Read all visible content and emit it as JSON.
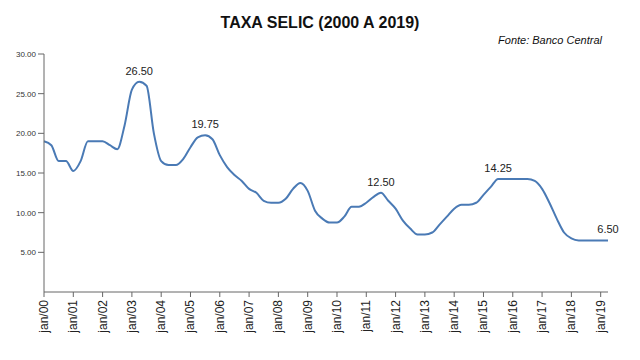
{
  "chart_data": {
    "type": "line",
    "title": "TAXA SELIC (2000 A 2019)",
    "source": "Fonte: Banco Central",
    "color": "#4a7ab5",
    "grid": false,
    "categories": [
      "jan/00",
      null,
      null,
      null,
      "jan/01",
      null,
      null,
      null,
      "jan/02",
      null,
      null,
      null,
      "jan/03",
      null,
      null,
      null,
      "jan/04",
      null,
      null,
      null,
      "jan/05",
      null,
      null,
      null,
      "jan/06",
      null,
      null,
      null,
      "jan/07",
      null,
      null,
      null,
      "jan/08",
      null,
      null,
      null,
      "jan/09",
      null,
      null,
      null,
      "jan/10",
      null,
      null,
      null,
      "jan/11",
      null,
      null,
      null,
      "jan/12",
      null,
      null,
      null,
      "jan/13",
      null,
      null,
      null,
      "jan/14",
      null,
      null,
      null,
      "jan/15",
      null,
      null,
      null,
      "jan/16",
      null,
      null,
      null,
      "jan/17",
      null,
      null,
      null,
      "jan/18",
      null,
      null,
      null,
      "jan/19",
      null
    ],
    "values": [
      19,
      18.5,
      16.5,
      16.5,
      15.25,
      16.5,
      19,
      19,
      19,
      18.5,
      18,
      21,
      25.5,
      26.5,
      26,
      20,
      16.5,
      16,
      16,
      16.75,
      18.25,
      19.5,
      19.75,
      19.25,
      17.25,
      15.75,
      14.75,
      14,
      13,
      12.5,
      11.5,
      11.25,
      11.25,
      11.75,
      13,
      13.75,
      12.75,
      10.25,
      9.25,
      8.75,
      8.75,
      9.5,
      10.75,
      10.75,
      11.25,
      12,
      12.5,
      11.5,
      10.5,
      9,
      8,
      7.25,
      7.25,
      7.5,
      8.5,
      9.5,
      10.5,
      11,
      11,
      11.25,
      12.25,
      13.25,
      14.25,
      14.25,
      14.25,
      14.25,
      14.25,
      14,
      13,
      11.25,
      9.25,
      7.5,
      6.75,
      6.5,
      6.5,
      6.5,
      6.5,
      6.5
    ],
    "annotations": [
      {
        "index": 13,
        "text": "26.50"
      },
      {
        "index": 22,
        "text": "19.75"
      },
      {
        "index": 46,
        "text": "12.50"
      },
      {
        "index": 62,
        "text": "14.25"
      },
      {
        "index": 77,
        "text": "6.50"
      }
    ],
    "ylim": [
      0,
      30
    ],
    "yticks": [
      {
        "value": 5,
        "label": "5.00"
      },
      {
        "value": 10,
        "label": "10.00"
      },
      {
        "value": 15,
        "label": "15.00"
      },
      {
        "value": 20,
        "label": "20.00"
      },
      {
        "value": 25,
        "label": "25.00"
      },
      {
        "value": 30,
        "label": "30.00"
      }
    ]
  }
}
